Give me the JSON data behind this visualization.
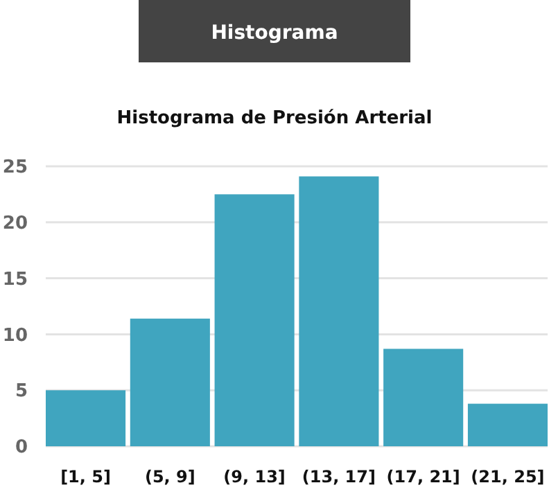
{
  "chart_data": {
    "type": "bar",
    "title": "Histograma",
    "subtitle": "Histograma de Presión Arterial",
    "categories": [
      "[1, 5]",
      "(5, 9]",
      "(9, 13]",
      "(13, 17]",
      "(17, 21]",
      "(21, 25]"
    ],
    "values": [
      5,
      11.4,
      22.5,
      24.1,
      8.7,
      3.8
    ],
    "color": "#40a5bf",
    "ylim": [
      0,
      25
    ],
    "yticks": [
      0,
      5,
      10,
      15,
      20,
      25
    ],
    "grid": "y"
  }
}
